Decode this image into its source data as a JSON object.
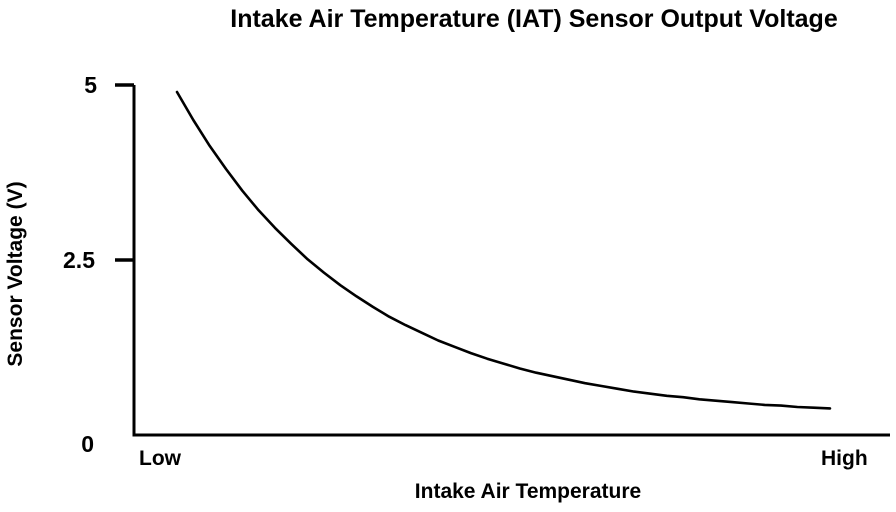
{
  "chart_data": {
    "type": "line",
    "title": "Intake Air Temperature (IAT) Sensor Output Voltage",
    "xlabel": "Intake Air Temperature",
    "ylabel": "Sensor Voltage (V)",
    "x_tick_labels": [
      "Low",
      "High"
    ],
    "y_tick_labels": [
      "0",
      "2.5",
      "5"
    ],
    "y_ticks_with_marks": [
      2.5,
      5
    ],
    "ylim": [
      0,
      5
    ],
    "xlim_normalized": [
      0,
      1
    ],
    "grid": false,
    "legend": false,
    "line_color": "#000000",
    "axis_color": "#000000",
    "background_color": "#ffffff",
    "series": [
      {
        "name": "IAT sensor output voltage",
        "x": [
          0,
          0.025,
          0.05,
          0.075,
          0.1,
          0.125,
          0.15,
          0.175,
          0.2,
          0.225,
          0.25,
          0.275,
          0.3,
          0.325,
          0.35,
          0.375,
          0.4,
          0.425,
          0.45,
          0.475,
          0.5,
          0.525,
          0.55,
          0.575,
          0.6,
          0.625,
          0.65,
          0.675,
          0.7,
          0.725,
          0.75,
          0.775,
          0.8,
          0.825,
          0.85,
          0.875,
          0.9,
          0.925,
          0.95,
          0.975,
          1.0
        ],
        "y": [
          4.9,
          4.5,
          4.13,
          3.8,
          3.49,
          3.21,
          2.96,
          2.73,
          2.51,
          2.32,
          2.14,
          1.98,
          1.83,
          1.69,
          1.57,
          1.46,
          1.35,
          1.26,
          1.17,
          1.09,
          1.02,
          0.95,
          0.89,
          0.84,
          0.79,
          0.74,
          0.7,
          0.66,
          0.62,
          0.59,
          0.56,
          0.54,
          0.51,
          0.49,
          0.47,
          0.45,
          0.43,
          0.42,
          0.4,
          0.39,
          0.38
        ]
      }
    ]
  }
}
